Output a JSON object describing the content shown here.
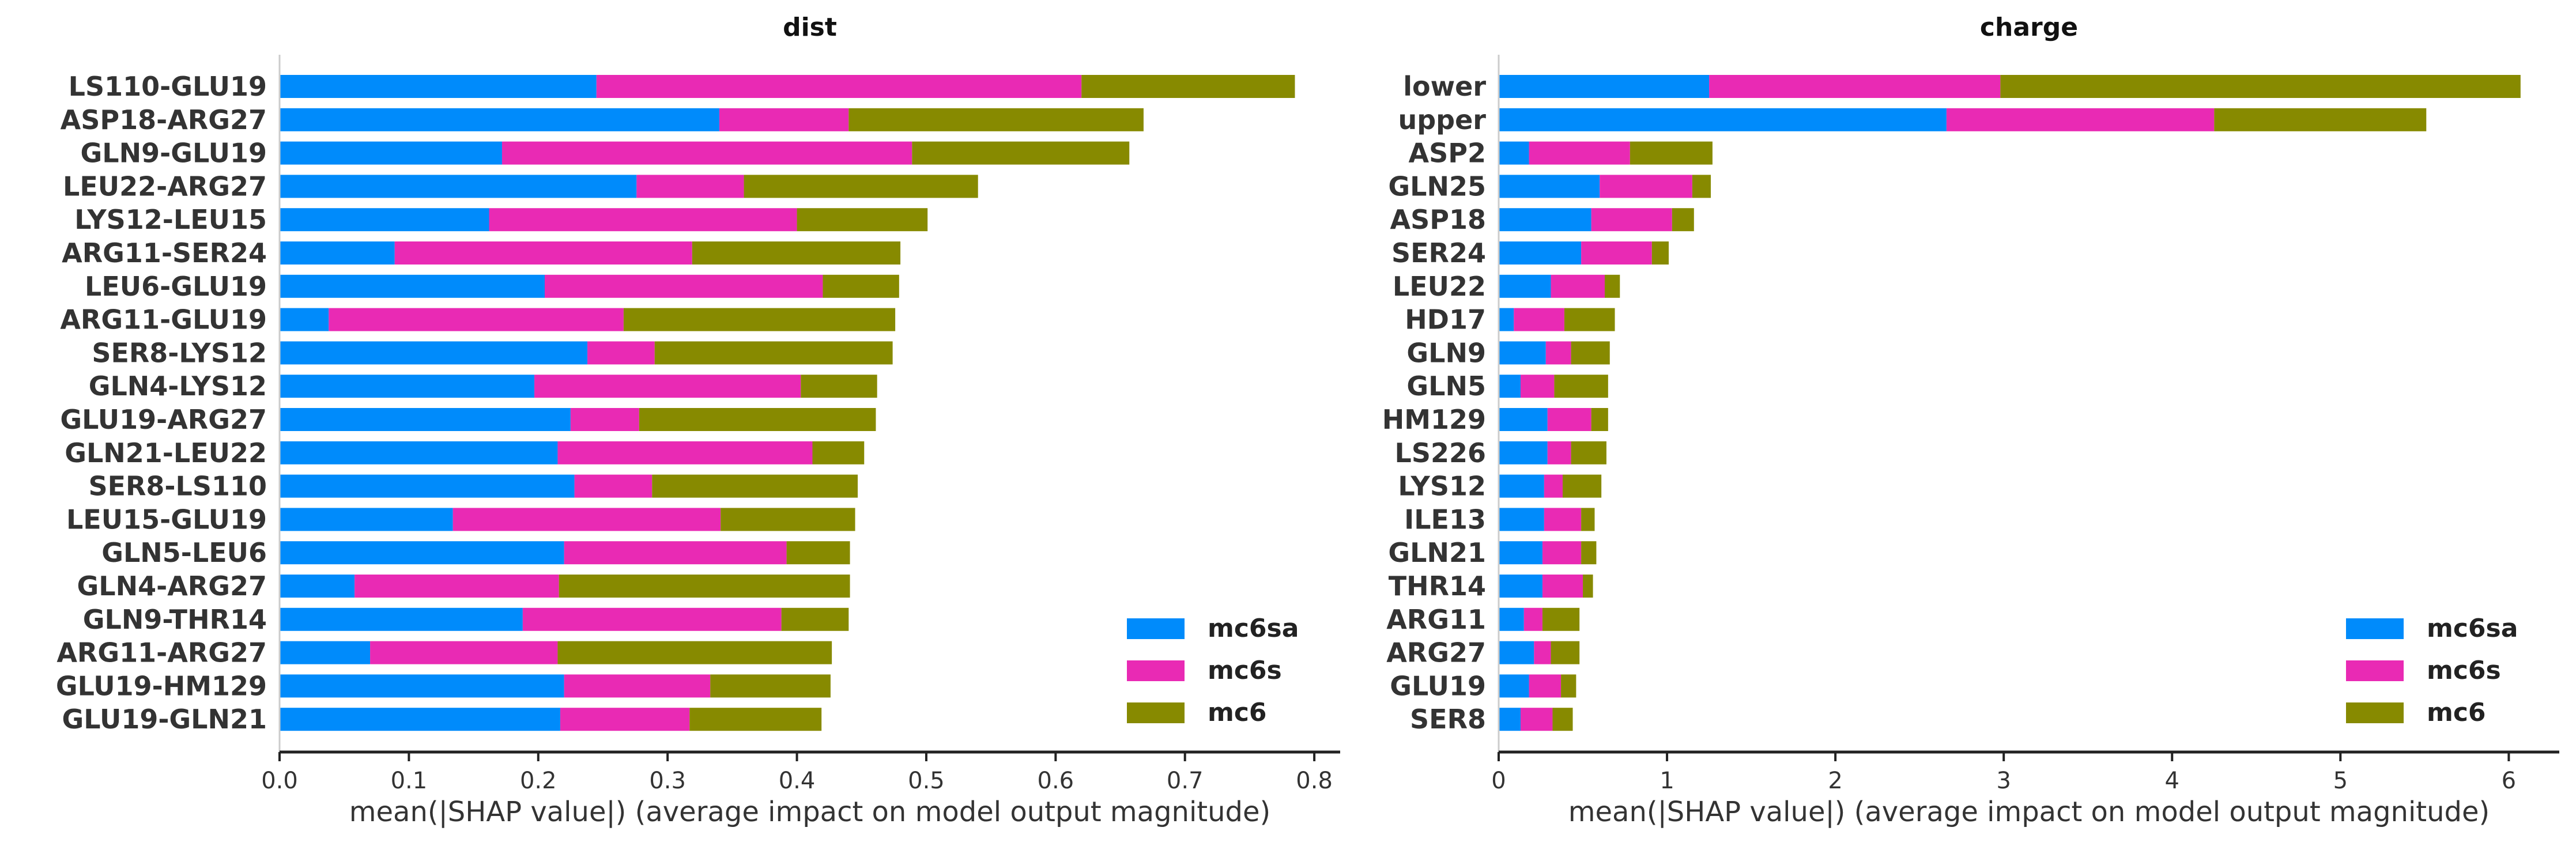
{
  "colors": {
    "mc6sa": "#008bfb",
    "mc6s": "#e92ab4",
    "mc6": "#878a00",
    "axis": "#222222",
    "text": "#333333"
  },
  "chart_data": [
    {
      "type": "bar",
      "orientation": "horizontal",
      "stacked": true,
      "title": "dist",
      "xlabel": "mean(|SHAP value|) (average impact on model output magnitude)",
      "ylabel": "",
      "xlim": [
        0,
        0.82
      ],
      "xticks": [
        "0.0",
        "0.1",
        "0.2",
        "0.3",
        "0.4",
        "0.5",
        "0.6",
        "0.7",
        "0.8"
      ],
      "legend_position": "lower-right",
      "categories": [
        "LS110-GLU19",
        "ASP18-ARG27",
        "GLN9-GLU19",
        "LEU22-ARG27",
        "LYS12-LEU15",
        "ARG11-SER24",
        "LEU6-GLU19",
        "ARG11-GLU19",
        "SER8-LYS12",
        "GLN4-LYS12",
        "GLU19-ARG27",
        "GLN21-LEU22",
        "SER8-LS110",
        "LEU15-GLU19",
        "GLN5-LEU6",
        "GLN4-ARG27",
        "GLN9-THR14",
        "ARG11-ARG27",
        "GLU19-HM129",
        "GLU19-GLN21"
      ],
      "series": [
        {
          "name": "mc6sa",
          "values": [
            0.245,
            0.34,
            0.172,
            0.276,
            0.162,
            0.089,
            0.205,
            0.038,
            0.238,
            0.197,
            0.225,
            0.215,
            0.228,
            0.134,
            0.22,
            0.058,
            0.188,
            0.07,
            0.22,
            0.217
          ]
        },
        {
          "name": "mc6s",
          "values": [
            0.375,
            0.1,
            0.317,
            0.083,
            0.238,
            0.23,
            0.215,
            0.228,
            0.052,
            0.206,
            0.053,
            0.197,
            0.06,
            0.207,
            0.172,
            0.158,
            0.2,
            0.145,
            0.113,
            0.1
          ]
        },
        {
          "name": "mc6",
          "values": [
            0.165,
            0.228,
            0.168,
            0.181,
            0.101,
            0.161,
            0.059,
            0.21,
            0.184,
            0.059,
            0.183,
            0.04,
            0.159,
            0.104,
            0.049,
            0.225,
            0.052,
            0.212,
            0.093,
            0.102
          ]
        }
      ]
    },
    {
      "type": "bar",
      "orientation": "horizontal",
      "stacked": true,
      "title": "charge",
      "xlabel": "mean(|SHAP value|) (average impact on model output magnitude)",
      "ylabel": "",
      "xlim": [
        0,
        6.3
      ],
      "xticks": [
        "0",
        "1",
        "2",
        "3",
        "4",
        "5",
        "6"
      ],
      "legend_position": "lower-right",
      "categories": [
        "lower",
        "upper",
        "ASP2",
        "GLN25",
        "ASP18",
        "SER24",
        "LEU22",
        "HD17",
        "GLN9",
        "GLN5",
        "HM129",
        "LS226",
        "LYS12",
        "ILE13",
        "GLN21",
        "THR14",
        "ARG11",
        "ARG27",
        "GLU19",
        "SER8"
      ],
      "series": [
        {
          "name": "mc6sa",
          "values": [
            1.25,
            2.66,
            0.18,
            0.6,
            0.55,
            0.49,
            0.31,
            0.09,
            0.28,
            0.13,
            0.29,
            0.29,
            0.27,
            0.27,
            0.26,
            0.26,
            0.15,
            0.21,
            0.18,
            0.13
          ]
        },
        {
          "name": "mc6s",
          "values": [
            1.73,
            1.59,
            0.6,
            0.55,
            0.48,
            0.42,
            0.32,
            0.3,
            0.15,
            0.2,
            0.26,
            0.14,
            0.11,
            0.22,
            0.23,
            0.24,
            0.11,
            0.1,
            0.19,
            0.19
          ]
        },
        {
          "name": "mc6",
          "values": [
            3.09,
            1.26,
            0.49,
            0.11,
            0.13,
            0.1,
            0.09,
            0.3,
            0.23,
            0.32,
            0.1,
            0.21,
            0.23,
            0.08,
            0.09,
            0.06,
            0.22,
            0.17,
            0.09,
            0.12
          ]
        }
      ]
    }
  ]
}
